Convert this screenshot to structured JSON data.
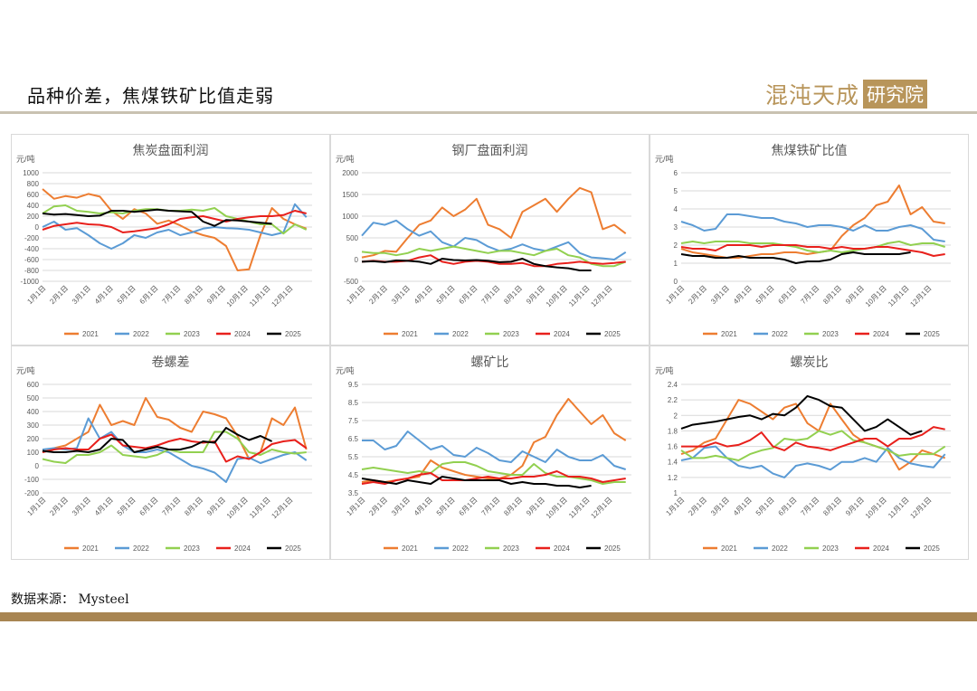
{
  "header": {
    "title": "品种价差，焦煤铁矿比值走弱",
    "logo_text": "混沌天成",
    "logo_badge": "研究院"
  },
  "footer": {
    "source": "数据来源： Mysteel"
  },
  "colors": {
    "2021": "#ED7D31",
    "2022": "#5B9BD5",
    "2023": "#92D050",
    "2024": "#E8201C",
    "2025": "#000000"
  },
  "chart_data": [
    {
      "type": "line",
      "title": "焦炭盘面利润",
      "ylabel": "元/吨",
      "ylim": [
        -1000,
        1000
      ],
      "ystep": 200,
      "yticks": [
        "1000",
        "800",
        "600",
        "400",
        "200",
        "0",
        "-200",
        "-400",
        "-600",
        "-800",
        "-1000"
      ],
      "xticks": [
        "1月1日",
        "2月1日",
        "3月1日",
        "4月1日",
        "5月1日",
        "6月1日",
        "7月1日",
        "8月1日",
        "9月1日",
        "10月1日",
        "11月1日",
        "12月1日"
      ],
      "x_note": "semi-monthly samples",
      "series": [
        {
          "name": "2021",
          "values": [
            700,
            520,
            570,
            540,
            610,
            560,
            300,
            150,
            330,
            250,
            60,
            120,
            30,
            -80,
            -150,
            -200,
            -350,
            -800,
            -780,
            -150,
            350,
            150,
            50,
            -30
          ]
        },
        {
          "name": "2022",
          "values": [
            0,
            100,
            -50,
            -20,
            -150,
            -300,
            -400,
            -300,
            -150,
            -200,
            -100,
            -50,
            -150,
            -100,
            -30,
            0,
            -20,
            -30,
            -50,
            -100,
            -150,
            -100,
            420,
            180
          ]
        },
        {
          "name": "2023",
          "values": [
            250,
            380,
            400,
            300,
            280,
            250,
            270,
            250,
            300,
            330,
            330,
            300,
            300,
            320,
            300,
            350,
            200,
            150,
            100,
            50,
            50,
            -120,
            50,
            -50
          ]
        },
        {
          "name": "2024",
          "values": [
            -50,
            20,
            50,
            80,
            50,
            40,
            0,
            -100,
            -80,
            -50,
            -20,
            50,
            150,
            180,
            200,
            150,
            100,
            150,
            180,
            200,
            200,
            220,
            300,
            250
          ]
        },
        {
          "name": "2025",
          "values": [
            250,
            230,
            240,
            220,
            200,
            210,
            300,
            300,
            280,
            300,
            320,
            300,
            290,
            280,
            100,
            20,
            130,
            120,
            100,
            80,
            60
          ]
        }
      ]
    },
    {
      "type": "line",
      "title": "钢厂盘面利润",
      "ylabel": "元/吨",
      "ylim": [
        -500,
        2000
      ],
      "ystep": 500,
      "yticks": [
        "2000",
        "1500",
        "1000",
        "500",
        "0",
        "-500"
      ],
      "xticks": [
        "1月1日",
        "2月1日",
        "3月1日",
        "4月1日",
        "5月1日",
        "6月1日",
        "7月1日",
        "8月1日",
        "9月1日",
        "10月1日",
        "11月1日",
        "12月1日"
      ],
      "x_note": "semi-monthly samples",
      "series": [
        {
          "name": "2021",
          "values": [
            50,
            100,
            200,
            180,
            500,
            800,
            900,
            1200,
            1000,
            1150,
            1400,
            800,
            700,
            500,
            1100,
            1250,
            1400,
            1100,
            1400,
            1650,
            1550,
            700,
            800,
            600
          ]
        },
        {
          "name": "2022",
          "values": [
            550,
            850,
            800,
            900,
            700,
            550,
            650,
            400,
            300,
            500,
            450,
            300,
            200,
            250,
            350,
            250,
            200,
            300,
            400,
            150,
            50,
            30,
            0,
            170
          ]
        },
        {
          "name": "2023",
          "values": [
            180,
            150,
            150,
            100,
            150,
            250,
            200,
            250,
            300,
            250,
            200,
            150,
            200,
            200,
            150,
            100,
            200,
            250,
            100,
            50,
            -100,
            -150,
            -150,
            -50
          ]
        },
        {
          "name": "2024",
          "values": [
            -50,
            -30,
            -50,
            -50,
            -30,
            50,
            100,
            -50,
            -100,
            -50,
            -30,
            -50,
            -100,
            -100,
            -80,
            -150,
            -150,
            -100,
            -80,
            -50,
            -80,
            -100,
            -80,
            -50
          ]
        },
        {
          "name": "2025",
          "values": [
            -50,
            -40,
            -60,
            -20,
            -30,
            -50,
            -100,
            20,
            -10,
            -20,
            -10,
            -30,
            -60,
            -50,
            20,
            -100,
            -150,
            -180,
            -200,
            -250,
            -250
          ]
        }
      ]
    },
    {
      "type": "line",
      "title": "焦煤铁矿比值",
      "ylabel": "元/吨",
      "ylim": [
        0,
        6
      ],
      "ystep": 1,
      "yticks": [
        "6",
        "5",
        "4",
        "3",
        "2",
        "1",
        "0"
      ],
      "xticks": [
        "1月1日",
        "2月1日",
        "3月1日",
        "4月1日",
        "5月1日",
        "6月1日",
        "7月1日",
        "8月1日",
        "9月1日",
        "10月1日",
        "11月1日",
        "12月1日"
      ],
      "x_note": "semi-monthly samples",
      "series": [
        {
          "name": "2021",
          "values": [
            1.8,
            1.6,
            1.5,
            1.4,
            1.3,
            1.3,
            1.4,
            1.5,
            1.5,
            1.6,
            1.6,
            1.5,
            1.6,
            1.7,
            2.5,
            3.1,
            3.5,
            4.2,
            4.4,
            5.3,
            3.7,
            4.1,
            3.3,
            3.2
          ]
        },
        {
          "name": "2022",
          "values": [
            3.3,
            3.1,
            2.8,
            2.9,
            3.7,
            3.7,
            3.6,
            3.5,
            3.5,
            3.3,
            3.2,
            3.0,
            3.1,
            3.1,
            3.0,
            2.8,
            3.1,
            2.8,
            2.8,
            3.0,
            3.1,
            2.9,
            2.3,
            2.2
          ]
        },
        {
          "name": "2023",
          "values": [
            2.1,
            2.2,
            2.1,
            2.2,
            2.2,
            2.2,
            2.1,
            2.1,
            2.1,
            2.0,
            1.9,
            1.7,
            1.6,
            1.7,
            1.6,
            1.7,
            1.8,
            1.9,
            2.1,
            2.2,
            2.0,
            2.1,
            2.1,
            1.9
          ]
        },
        {
          "name": "2024",
          "values": [
            1.9,
            1.8,
            1.8,
            1.7,
            2.0,
            2.0,
            2.0,
            1.9,
            2.0,
            2.0,
            2.0,
            1.9,
            1.9,
            1.8,
            1.9,
            1.8,
            1.8,
            1.9,
            1.9,
            1.8,
            1.7,
            1.6,
            1.4,
            1.5
          ]
        },
        {
          "name": "2025",
          "values": [
            1.5,
            1.4,
            1.4,
            1.3,
            1.3,
            1.4,
            1.3,
            1.3,
            1.3,
            1.2,
            1.0,
            1.1,
            1.1,
            1.2,
            1.5,
            1.6,
            1.5,
            1.5,
            1.5,
            1.5,
            1.6
          ]
        }
      ]
    },
    {
      "type": "line",
      "title": "卷螺差",
      "ylabel": "元/吨",
      "ylim": [
        -200,
        600
      ],
      "ystep": 100,
      "yticks": [
        "600",
        "500",
        "400",
        "300",
        "200",
        "100",
        "0",
        "-100",
        "-200"
      ],
      "xticks": [
        "1月1日",
        "2月1日",
        "3月1日",
        "4月1日",
        "5月1日",
        "6月1日",
        "7月1日",
        "8月1日",
        "9月1日",
        "10月1日",
        "11月1日",
        "12月1日"
      ],
      "x_note": "semi-monthly samples",
      "series": [
        {
          "name": "2021",
          "values": [
            100,
            130,
            150,
            200,
            250,
            450,
            300,
            330,
            300,
            500,
            360,
            340,
            280,
            250,
            400,
            380,
            350,
            220,
            50,
            100,
            350,
            300,
            430,
            120
          ]
        },
        {
          "name": "2022",
          "values": [
            120,
            130,
            120,
            130,
            350,
            200,
            250,
            150,
            100,
            100,
            120,
            100,
            50,
            0,
            -20,
            -50,
            -120,
            50,
            60,
            20,
            50,
            80,
            100,
            40
          ]
        },
        {
          "name": "2023",
          "values": [
            50,
            30,
            20,
            80,
            80,
            100,
            150,
            80,
            70,
            60,
            80,
            120,
            100,
            100,
            100,
            250,
            250,
            200,
            100,
            80,
            120,
            100,
            90,
            100
          ]
        },
        {
          "name": "2024",
          "values": [
            100,
            120,
            130,
            120,
            120,
            200,
            230,
            150,
            140,
            130,
            150,
            180,
            200,
            180,
            170,
            180,
            30,
            70,
            50,
            100,
            160,
            180,
            190,
            130
          ]
        },
        {
          "name": "2025",
          "values": [
            110,
            100,
            100,
            110,
            100,
            120,
            200,
            190,
            100,
            120,
            140,
            120,
            120,
            140,
            180,
            170,
            280,
            230,
            190,
            220,
            180
          ]
        }
      ]
    },
    {
      "type": "line",
      "title": "螺矿比",
      "ylabel": "元/吨",
      "ylim": [
        3.5,
        9.5
      ],
      "ystep": 1,
      "yticks": [
        "9.5",
        "8.5",
        "7.5",
        "6.5",
        "5.5",
        "4.5",
        "3.5"
      ],
      "xticks": [
        "1月1日",
        "2月1日",
        "3月1日",
        "4月1日",
        "5月1日",
        "6月1日",
        "7月1日",
        "8月1日",
        "9月1日",
        "10月1日",
        "11月1日",
        "12月1日"
      ],
      "x_note": "semi-monthly samples",
      "series": [
        {
          "name": "2021",
          "values": [
            4.1,
            4.2,
            4.1,
            4.2,
            4.3,
            4.4,
            5.3,
            4.9,
            4.7,
            4.5,
            4.4,
            4.3,
            4.3,
            4.5,
            5.0,
            6.3,
            6.6,
            7.8,
            8.7,
            8.0,
            7.3,
            7.8,
            6.8,
            6.4
          ]
        },
        {
          "name": "2022",
          "values": [
            6.4,
            6.4,
            5.9,
            6.1,
            6.9,
            6.4,
            5.9,
            6.1,
            5.6,
            5.5,
            6.0,
            5.7,
            5.3,
            5.2,
            5.8,
            5.5,
            5.2,
            5.9,
            5.5,
            5.3,
            5.3,
            5.6,
            5.0,
            4.8
          ]
        },
        {
          "name": "2023",
          "values": [
            4.8,
            4.9,
            4.8,
            4.7,
            4.6,
            4.7,
            4.6,
            5.1,
            5.2,
            5.2,
            5.0,
            4.7,
            4.6,
            4.5,
            4.5,
            5.1,
            4.6,
            4.4,
            4.4,
            4.3,
            4.2,
            4.0,
            4.1,
            4.1
          ]
        },
        {
          "name": "2024",
          "values": [
            4.0,
            4.1,
            4.0,
            4.2,
            4.3,
            4.5,
            4.6,
            4.2,
            4.2,
            4.2,
            4.3,
            4.4,
            4.3,
            4.3,
            4.4,
            4.4,
            4.5,
            4.7,
            4.4,
            4.4,
            4.3,
            4.1,
            4.2,
            4.3
          ]
        },
        {
          "name": "2025",
          "values": [
            4.3,
            4.2,
            4.1,
            4.0,
            4.2,
            4.1,
            4.0,
            4.4,
            4.3,
            4.2,
            4.2,
            4.2,
            4.2,
            4.0,
            4.1,
            4.0,
            4.0,
            3.9,
            3.9,
            3.8,
            3.9
          ]
        }
      ]
    },
    {
      "type": "line",
      "title": "螺炭比",
      "ylabel": "元/吨",
      "ylim": [
        1,
        2.4
      ],
      "ystep": 0.2,
      "yticks": [
        "2.4",
        "2.2",
        "2",
        "1.8",
        "1.6",
        "1.4",
        "1.2",
        "1"
      ],
      "xticks": [
        "1月1日",
        "2月1日",
        "3月1日",
        "4月1日",
        "5月1日",
        "6月1日",
        "7月1日",
        "8月1日",
        "9月1日",
        "10月1日",
        "11月1日",
        "12月1日"
      ],
      "x_note": "semi-monthly samples",
      "series": [
        {
          "name": "2021",
          "values": [
            1.5,
            1.55,
            1.65,
            1.7,
            1.95,
            2.2,
            2.15,
            2.05,
            1.95,
            2.1,
            2.15,
            1.9,
            1.8,
            2.15,
            1.95,
            1.75,
            1.65,
            1.6,
            1.55,
            1.3,
            1.4,
            1.55,
            1.5,
            1.45
          ]
        },
        {
          "name": "2022",
          "values": [
            1.42,
            1.45,
            1.58,
            1.6,
            1.45,
            1.35,
            1.32,
            1.35,
            1.25,
            1.2,
            1.35,
            1.38,
            1.35,
            1.3,
            1.4,
            1.4,
            1.45,
            1.4,
            1.58,
            1.45,
            1.38,
            1.35,
            1.33,
            1.5
          ]
        },
        {
          "name": "2023",
          "values": [
            1.55,
            1.45,
            1.45,
            1.48,
            1.45,
            1.42,
            1.5,
            1.55,
            1.58,
            1.7,
            1.68,
            1.7,
            1.8,
            1.75,
            1.8,
            1.68,
            1.65,
            1.6,
            1.55,
            1.48,
            1.5,
            1.5,
            1.5,
            1.6
          ]
        },
        {
          "name": "2024",
          "values": [
            1.6,
            1.6,
            1.6,
            1.65,
            1.6,
            1.62,
            1.68,
            1.78,
            1.6,
            1.55,
            1.65,
            1.6,
            1.58,
            1.55,
            1.6,
            1.65,
            1.7,
            1.7,
            1.6,
            1.7,
            1.7,
            1.75,
            1.85,
            1.82
          ]
        },
        {
          "name": "2025",
          "values": [
            1.83,
            1.88,
            1.9,
            1.92,
            1.95,
            1.98,
            2.0,
            1.95,
            2.02,
            2.0,
            2.1,
            2.25,
            2.2,
            2.12,
            2.1,
            1.95,
            1.8,
            1.85,
            1.95,
            1.85,
            1.75,
            1.8
          ]
        }
      ]
    }
  ]
}
